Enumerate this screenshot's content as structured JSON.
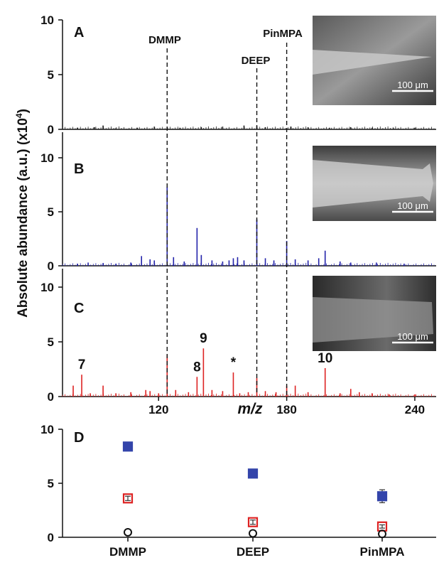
{
  "figure": {
    "y_axis_label": "Absolute abundance (a.u.) (x10",
    "y_axis_label_exp": "4",
    "y_axis_label_tail": ")",
    "x_axis_label": "m/z"
  },
  "colors": {
    "spectrum_A": "#222222",
    "spectrum_B": "#2222aa",
    "spectrum_C": "#dd2222",
    "filled_square": "#3344aa",
    "open_square": "#dd2222",
    "open_circle": "#111111"
  },
  "chart_data": [
    {
      "type": "line",
      "panel": "A",
      "series": [
        {
          "x": [
            82,
            90,
            94,
            100,
            110,
            118,
            124,
            130,
            140,
            150,
            160,
            166,
            170,
            182,
            190,
            200,
            210,
            220,
            230,
            240
          ],
          "values": [
            0.15,
            0.2,
            0.35,
            0.1,
            0.15,
            0.25,
            0.2,
            0.15,
            0.2,
            0.25,
            0.35,
            0.3,
            0.2,
            0.25,
            0.2,
            0.15,
            0.2,
            0.15,
            0.1,
            0.15
          ]
        }
      ],
      "xlim": [
        75,
        250
      ],
      "ylim": [
        0,
        10
      ],
      "yticks": [
        "0",
        "5",
        "10"
      ],
      "annotations": [
        {
          "text": "DMMP",
          "x": 124
        },
        {
          "text": "DEEP",
          "x": 166
        },
        {
          "text": "PinMPA",
          "x": 180
        }
      ],
      "scale_bar": "100 μm"
    },
    {
      "type": "line",
      "panel": "B",
      "series": [
        {
          "x": [
            82,
            87,
            94,
            100,
            107,
            112,
            116,
            118,
            124,
            127,
            132,
            138,
            140,
            145,
            150,
            153,
            155,
            157,
            160,
            166,
            170,
            174,
            180,
            184,
            190,
            195,
            198,
            205,
            210,
            222,
            235
          ],
          "values": [
            0.2,
            0.3,
            0.25,
            0.2,
            0.3,
            0.9,
            0.6,
            0.5,
            7.3,
            0.8,
            0.4,
            3.5,
            1.0,
            0.5,
            0.4,
            0.5,
            0.7,
            0.8,
            0.5,
            4.3,
            0.7,
            0.5,
            2.3,
            0.6,
            0.5,
            0.7,
            1.4,
            0.4,
            0.3,
            0.3,
            0.2
          ]
        }
      ],
      "xlim": [
        75,
        250
      ],
      "ylim": [
        0,
        10
      ],
      "yticks": [
        "0",
        "5",
        "10"
      ],
      "scale_bar": "100 μm"
    },
    {
      "type": "line",
      "panel": "C",
      "series": [
        {
          "x": [
            80,
            84,
            88,
            94,
            100,
            107,
            114,
            116,
            120,
            124,
            128,
            134,
            138,
            141,
            145,
            150,
            155,
            158,
            162,
            166,
            170,
            175,
            180,
            184,
            190,
            198,
            205,
            210,
            214,
            220,
            228,
            240
          ],
          "values": [
            1.0,
            2.0,
            0.3,
            1.0,
            0.3,
            0.4,
            0.6,
            0.5,
            0.3,
            3.8,
            0.6,
            0.4,
            1.8,
            4.4,
            0.6,
            0.5,
            2.2,
            0.3,
            0.4,
            1.7,
            0.5,
            0.4,
            1.0,
            1.0,
            0.4,
            2.6,
            0.3,
            0.7,
            0.4,
            0.3,
            0.2,
            0.2
          ]
        }
      ],
      "xlim": [
        75,
        250
      ],
      "ylim": [
        0,
        10
      ],
      "yticks": [
        "0",
        "5",
        "10"
      ],
      "xticks": [
        "120",
        "180",
        "240"
      ],
      "peak_labels": [
        {
          "text": "7",
          "x": 84
        },
        {
          "text": "8",
          "x": 138
        },
        {
          "text": "9",
          "x": 141
        },
        {
          "text": "*",
          "x": 155
        },
        {
          "text": "10",
          "x": 198
        }
      ],
      "scale_bar": "100 μm"
    },
    {
      "type": "scatter",
      "panel": "D",
      "categories": [
        "DMMP",
        "DEEP",
        "PinMPA"
      ],
      "series": [
        {
          "values": [
            8.4,
            5.9,
            3.8
          ],
          "errors": [
            0.2,
            0.25,
            0.6
          ]
        },
        {
          "values": [
            3.6,
            1.4,
            1.0
          ],
          "errors": [
            0.2,
            0.2,
            0.15
          ]
        },
        {
          "values": [
            0.2,
            0.1,
            0.05
          ],
          "errors": [
            0,
            0,
            0
          ]
        }
      ],
      "ylim": [
        0,
        10
      ],
      "yticks": [
        "0",
        "5",
        "10"
      ]
    }
  ]
}
